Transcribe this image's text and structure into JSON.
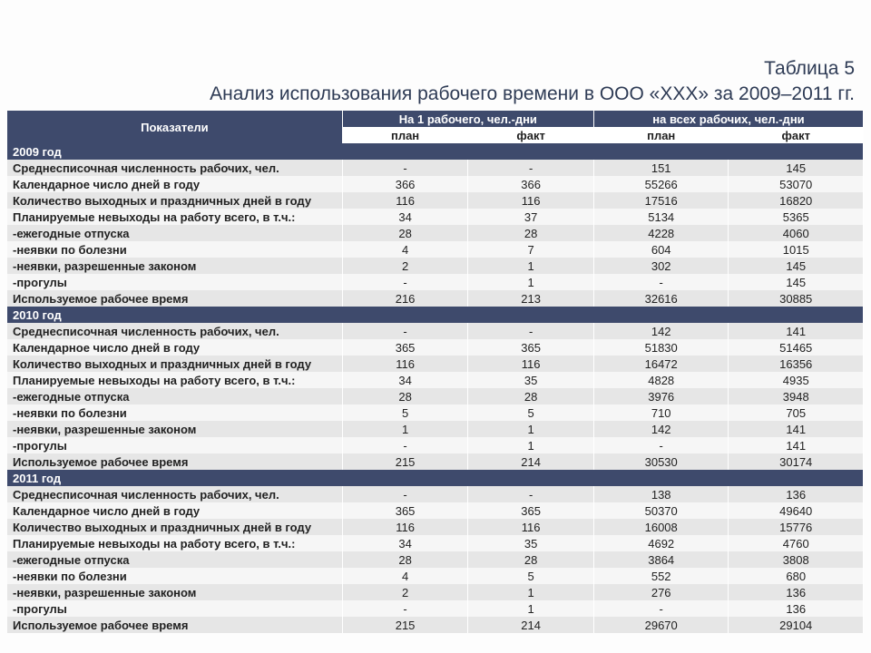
{
  "title_line1": "Таблица 5",
  "title_line2": "Анализ использования рабочего времени в ООО «ХХХ» за 2009–2011 гг.",
  "header": {
    "indicator": "Показатели",
    "group1": "На 1 рабочего, чел.-дни",
    "group2": "на всех рабочих, чел.-дни",
    "plan": "план",
    "fact": "факт"
  },
  "colors": {
    "header_bg": "#3e4a6c",
    "row_even": "#e6e6e6",
    "row_odd": "#f6f6f6",
    "title_color": "#2e3b55"
  },
  "font": {
    "title_size": 21,
    "cell_size": 13
  },
  "years": [
    {
      "label": "2009 год",
      "rows": [
        {
          "name": "Среднесписочная численность рабочих, чел.",
          "v": [
            "-",
            "-",
            "151",
            "145"
          ]
        },
        {
          "name": "Календарное число дней в году",
          "v": [
            "366",
            "366",
            "55266",
            "53070"
          ]
        },
        {
          "name": "Количество выходных и праздничных дней в году",
          "v": [
            "116",
            "116",
            "17516",
            "16820"
          ]
        },
        {
          "name": "Планируемые невыходы на работу всего, в т.ч.:",
          "v": [
            "34",
            "37",
            "5134",
            "5365"
          ]
        },
        {
          "name": "-ежегодные отпуска",
          "v": [
            "28",
            "28",
            "4228",
            "4060"
          ]
        },
        {
          "name": "-неявки по болезни",
          "v": [
            "4",
            "7",
            "604",
            "1015"
          ]
        },
        {
          "name": "-неявки, разрешенные законом",
          "v": [
            "2",
            "1",
            "302",
            "145"
          ]
        },
        {
          "name": "-прогулы",
          "v": [
            "-",
            "1",
            "-",
            "145"
          ]
        },
        {
          "name": "Используемое рабочее время",
          "v": [
            "216",
            "213",
            "32616",
            "30885"
          ]
        }
      ]
    },
    {
      "label": "2010 год",
      "rows": [
        {
          "name": "Среднесписочная численность рабочих, чел.",
          "v": [
            "-",
            "-",
            "142",
            "141"
          ]
        },
        {
          "name": "Календарное число дней в году",
          "v": [
            "365",
            "365",
            "51830",
            "51465"
          ]
        },
        {
          "name": "Количество выходных и праздничных дней в году",
          "v": [
            "116",
            "116",
            "16472",
            "16356"
          ]
        },
        {
          "name": "Планируемые невыходы на работу всего, в т.ч.:",
          "v": [
            "34",
            "35",
            "4828",
            "4935"
          ]
        },
        {
          "name": "-ежегодные отпуска",
          "v": [
            "28",
            "28",
            "3976",
            "3948"
          ]
        },
        {
          "name": "-неявки по болезни",
          "v": [
            "5",
            "5",
            "710",
            "705"
          ]
        },
        {
          "name": "-неявки, разрешенные законом",
          "v": [
            "1",
            "1",
            "142",
            "141"
          ]
        },
        {
          "name": "-прогулы",
          "v": [
            "-",
            "1",
            "-",
            "141"
          ]
        },
        {
          "name": "Используемое рабочее время",
          "v": [
            "215",
            "214",
            "30530",
            "30174"
          ]
        }
      ]
    },
    {
      "label": "2011 год",
      "rows": [
        {
          "name": "Среднесписочная численность рабочих, чел.",
          "v": [
            "-",
            "-",
            "138",
            "136"
          ]
        },
        {
          "name": "Календарное число дней в году",
          "v": [
            "365",
            "365",
            "50370",
            "49640"
          ]
        },
        {
          "name": "Количество выходных и праздничных дней в году",
          "v": [
            "116",
            "116",
            "16008",
            "15776"
          ]
        },
        {
          "name": "Планируемые невыходы на работу всего, в т.ч.:",
          "v": [
            "34",
            "35",
            "4692",
            "4760"
          ]
        },
        {
          "name": "-ежегодные отпуска",
          "v": [
            "28",
            "28",
            "3864",
            "3808"
          ]
        },
        {
          "name": "-неявки по болезни",
          "v": [
            "4",
            "5",
            "552",
            "680"
          ]
        },
        {
          "name": "-неявки, разрешенные законом",
          "v": [
            "2",
            "1",
            "276",
            "136"
          ]
        },
        {
          "name": "-прогулы",
          "v": [
            "-",
            "1",
            "-",
            "136"
          ]
        },
        {
          "name": "Используемое рабочее время",
          "v": [
            "215",
            "214",
            "29670",
            "29104"
          ]
        }
      ]
    }
  ]
}
